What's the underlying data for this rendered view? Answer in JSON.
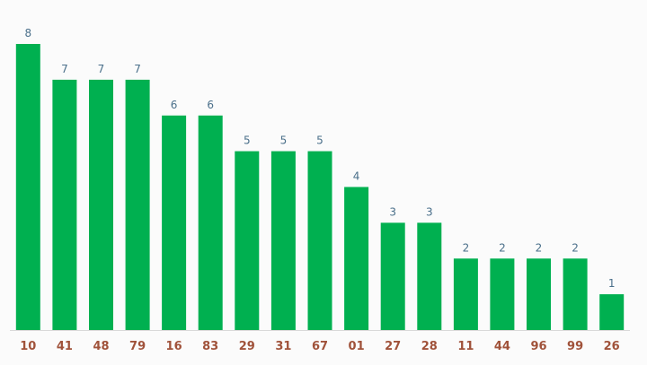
{
  "chart_data": {
    "type": "bar",
    "categories": [
      "10",
      "41",
      "48",
      "79",
      "16",
      "83",
      "29",
      "31",
      "67",
      "01",
      "27",
      "28",
      "11",
      "44",
      "96",
      "99",
      "26"
    ],
    "values": [
      8,
      7,
      7,
      7,
      6,
      6,
      5,
      5,
      5,
      4,
      3,
      3,
      2,
      2,
      2,
      2,
      1
    ],
    "title": "",
    "xlabel": "",
    "ylabel": "",
    "ylim": [
      0,
      8
    ],
    "grid": false,
    "legend": "none",
    "data_labels": true,
    "colors": {
      "bar": "#00b050",
      "value_label": "#4a6f8a",
      "category_label": "#a0523a",
      "axis": "#d9d9d9",
      "background": "#fbfbfb"
    }
  }
}
